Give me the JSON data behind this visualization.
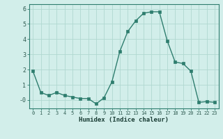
{
  "x": [
    0,
    1,
    2,
    3,
    4,
    5,
    6,
    7,
    8,
    9,
    10,
    11,
    12,
    13,
    14,
    15,
    16,
    17,
    18,
    19,
    20,
    21,
    22,
    23
  ],
  "y": [
    1.9,
    0.5,
    0.3,
    0.5,
    0.3,
    0.2,
    0.1,
    0.1,
    -0.25,
    0.15,
    1.2,
    3.2,
    4.5,
    5.2,
    5.7,
    5.8,
    5.8,
    3.9,
    2.5,
    2.4,
    1.9,
    -0.15,
    -0.1,
    -0.15
  ],
  "xlabel": "Humidex (Indice chaleur)",
  "ylim": [
    -0.55,
    6.3
  ],
  "xlim": [
    -0.5,
    23.5
  ],
  "yticks": [
    0,
    1,
    2,
    3,
    4,
    5,
    6
  ],
  "ytick_labels": [
    "-0",
    "1",
    "2",
    "3",
    "4",
    "5",
    "6"
  ],
  "bg_color": "#d2eeea",
  "grid_color": "#b0d8d0",
  "line_color": "#2e7d6e",
  "marker_color": "#2e7d6e",
  "fig_bg": "#d2eeea",
  "tick_color": "#2e5a50",
  "label_color": "#1a3d35"
}
